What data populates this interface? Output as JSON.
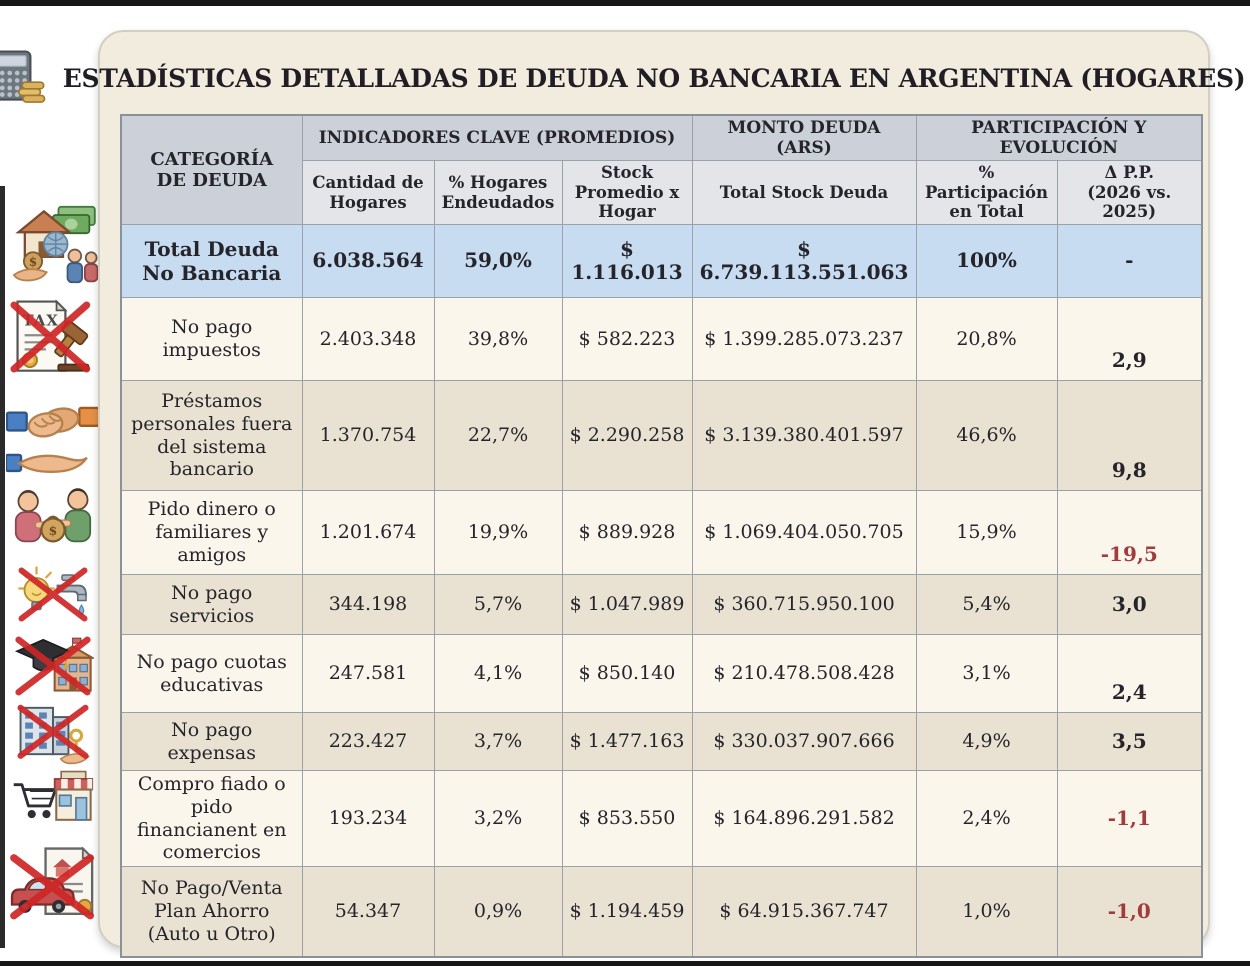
{
  "title": "ESTADÍSTICAS DETALLADAS DE DEUDA NO BANCARIA EN ARGENTINA (HOGARES)",
  "header_icons": {
    "left": "calculator-coins-icon",
    "right": "document-coin-icon"
  },
  "table": {
    "first_column_header": "CATEGORÍA\nDE DEUDA",
    "group_headers": [
      "INDICADORES CLAVE (PROMEDIOS)",
      "MONTO DEUDA (ARS)",
      "PARTICIPACIÓN Y EVOLUCIÓN"
    ],
    "sub_headers": [
      "Cantidad de\nHogares",
      "% Hogares\nEndeudados",
      "Stock\nPromedio x\nHogar",
      "Total Stock Deuda",
      "% Participación\nen Total",
      "Δ P.P.\n(2026 vs. 2025)"
    ],
    "rows": [
      {
        "icon": "household-debt-icon",
        "category": "Total Deuda No Bancaria",
        "cantidad_hogares": "6.038.564",
        "pct_hogares_endeudados": "59,0%",
        "stock_promedio_hogar": "$ 1.116.013",
        "total_stock_deuda": "$ 6.739.113.551.063",
        "pct_participacion": "100%",
        "delta_pp": "-"
      },
      {
        "icon": "tax-crossed-icon",
        "category": "No pago impuestos",
        "cantidad_hogares": "2.403.348",
        "pct_hogares_endeudados": "39,8%",
        "stock_promedio_hogar": "$ 582.223",
        "total_stock_deuda": "$ 1.399.285.073.237",
        "pct_participacion": "20,8%",
        "delta_pp": "2,9"
      },
      {
        "icon": "handshake-loan-icon",
        "category": "Préstamos personales fuera del sistema bancario",
        "cantidad_hogares": "1.370.754",
        "pct_hogares_endeudados": "22,7%",
        "stock_promedio_hogar": "$ 2.290.258",
        "total_stock_deuda": "$ 3.139.380.401.597",
        "pct_participacion": "46,6%",
        "delta_pp": "9,8"
      },
      {
        "icon": "family-money-icon",
        "category": "Pido dinero o familiares y amigos",
        "cantidad_hogares": "1.201.674",
        "pct_hogares_endeudados": "19,9%",
        "stock_promedio_hogar": "$ 889.928",
        "total_stock_deuda": "$ 1.069.404.050.705",
        "pct_participacion": "15,9%",
        "delta_pp": "-19,5"
      },
      {
        "icon": "utilities-crossed-icon",
        "category": "No pago servicios",
        "cantidad_hogares": "344.198",
        "pct_hogares_endeudados": "5,7%",
        "stock_promedio_hogar": "$ 1.047.989",
        "total_stock_deuda": "$ 360.715.950.100",
        "pct_participacion": "5,4%",
        "delta_pp": "3,0"
      },
      {
        "icon": "education-crossed-icon",
        "category": "No pago cuotas educativas",
        "cantidad_hogares": "247.581",
        "pct_hogares_endeudados": "4,1%",
        "stock_promedio_hogar": "$ 850.140",
        "total_stock_deuda": "$ 210.478.508.428",
        "pct_participacion": "3,1%",
        "delta_pp": "2,4"
      },
      {
        "icon": "expensas-crossed-icon",
        "category": "No pago expensas",
        "cantidad_hogares": "223.427",
        "pct_hogares_endeudados": "3,7%",
        "stock_promedio_hogar": "$ 1.477.163",
        "total_stock_deuda": "$ 330.037.907.666",
        "pct_participacion": "4,9%",
        "delta_pp": "3,5"
      },
      {
        "icon": "store-cart-icon",
        "category": "Compro fiado o pido financianent en comercios",
        "cantidad_hogares": "193.234",
        "pct_hogares_endeudados": "3,2%",
        "stock_promedio_hogar": "$ 853.550",
        "total_stock_deuda": "$ 164.896.291.582",
        "pct_participacion": "2,4%",
        "delta_pp": "-1,1"
      },
      {
        "icon": "car-plan-crossed-icon",
        "category": "No Pago/Venta Plan Ahorro (Auto u Otro)",
        "cantidad_hogares": "54.347",
        "pct_hogares_endeudados": "0,9%",
        "stock_promedio_hogar": "$ 1.194.459",
        "total_stock_deuda": "$ 64.915.367.747",
        "pct_participacion": "1,0%",
        "delta_pp": "-1,0"
      }
    ]
  },
  "colors": {
    "header_dark": "#ccd1d9",
    "header_light": "#e3e5e9",
    "total_row_blue": "#c7dcf1",
    "row_cream": "#faf6ec",
    "row_beige": "#e9e2d2",
    "negative_red": "#a03c3c",
    "panel_bg": "#f2ecdf",
    "red_cross": "#cf2727"
  },
  "chart_data": {
    "type": "table",
    "title": "ESTADÍSTICAS DETALLADAS DE DEUDA NO BANCARIA EN ARGENTINA (HOGARES)",
    "column_groups": [
      "INDICADORES CLAVE (PROMEDIOS)",
      "MONTO DEUDA (ARS)",
      "PARTICIPACIÓN Y EVOLUCIÓN"
    ],
    "columns": [
      "Categoría de Deuda",
      "Cantidad de Hogares",
      "% Hogares Endeudados",
      "Stock Promedio x Hogar",
      "Total Stock Deuda",
      "% Participación en Total",
      "Δ P.P. (2026 vs. 2025)"
    ],
    "rows": [
      [
        "Total Deuda No Bancaria",
        "6.038.564",
        "59,0%",
        "$ 1.116.013",
        "$ 6.739.113.551.063",
        "100%",
        "-"
      ],
      [
        "No pago impuestos",
        "2.403.348",
        "39,8%",
        "$ 582.223",
        "$ 1.399.285.073.237",
        "20,8%",
        "2,9"
      ],
      [
        "Préstamos personales fuera del sistema bancario",
        "1.370.754",
        "22,7%",
        "$ 2.290.258",
        "$ 3.139.380.401.597",
        "46,6%",
        "9,8"
      ],
      [
        "Pido dinero o familiares y amigos",
        "1.201.674",
        "19,9%",
        "$ 889.928",
        "$ 1.069.404.050.705",
        "15,9%",
        "-19,5"
      ],
      [
        "No pago servicios",
        "344.198",
        "5,7%",
        "$ 1.047.989",
        "$ 360.715.950.100",
        "5,4%",
        "3,0"
      ],
      [
        "No pago cuotas educativas",
        "247.581",
        "4,1%",
        "$ 850.140",
        "$ 210.478.508.428",
        "3,1%",
        "2,4"
      ],
      [
        "No pago expensas",
        "223.427",
        "3,7%",
        "$ 1.477.163",
        "$ 330.037.907.666",
        "4,9%",
        "3,5"
      ],
      [
        "Compro fiado o pido financianent en comercios",
        "193.234",
        "3,2%",
        "$ 853.550",
        "$ 164.896.291.582",
        "2,4%",
        "-1,1"
      ],
      [
        "No Pago/Venta Plan Ahorro (Auto u Otro)",
        "54.347",
        "0,9%",
        "$ 1.194.459",
        "$ 64.915.367.747",
        "1,0%",
        "-1,0"
      ]
    ]
  }
}
